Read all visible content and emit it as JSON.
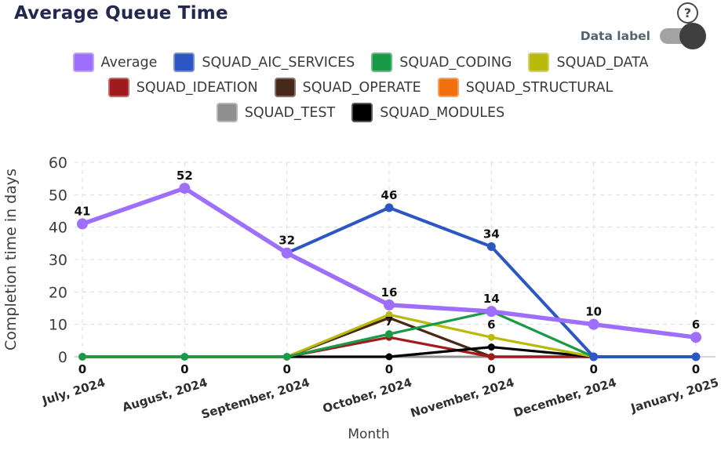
{
  "header": {
    "title": "Average Queue Time",
    "help_icon": "?",
    "toggle": {
      "label": "Data label",
      "state": "on"
    }
  },
  "chart_data": {
    "type": "line",
    "title": "Average Queue Time",
    "xlabel": "Month",
    "ylabel": "Completion time in days",
    "ylim": [
      0,
      60
    ],
    "yticks": [
      0,
      10,
      20,
      30,
      40,
      50,
      60
    ],
    "grid": true,
    "legend_position": "top",
    "categories": [
      "July, 2024",
      "August, 2024",
      "September, 2024",
      "October, 2024",
      "November, 2024",
      "December, 2024",
      "January, 2025"
    ],
    "series": [
      {
        "name": "Average",
        "color": "#9e6efc",
        "line_width": 5.5,
        "point_radius": 7,
        "values": [
          41,
          52,
          32,
          16,
          14,
          10,
          6
        ],
        "labels": [
          "41",
          "52",
          "32",
          "16",
          "14",
          "10",
          "6"
        ]
      },
      {
        "name": "SQUAD_AIC_SERVICES",
        "color": "#2d56c5",
        "line_width": 4,
        "point_radius": 5.5,
        "values": [
          null,
          null,
          32,
          46,
          34,
          0,
          0
        ],
        "labels": [
          null,
          null,
          null,
          "46",
          "34",
          null,
          null
        ]
      },
      {
        "name": "SQUAD_CODING",
        "color": "#189a46",
        "line_width": 3.2,
        "point_radius": 5,
        "values": [
          0,
          0,
          0,
          7,
          14,
          0,
          0
        ],
        "labels": [
          null,
          null,
          null,
          "7",
          null,
          null,
          null
        ]
      },
      {
        "name": "SQUAD_DATA",
        "color": "#b9ba0c",
        "line_width": 3.2,
        "point_radius": 4.5,
        "values": [
          0,
          0,
          0,
          13,
          6,
          0,
          0
        ],
        "labels": [
          null,
          null,
          null,
          null,
          "6",
          null,
          null
        ]
      },
      {
        "name": "SQUAD_IDEATION",
        "color": "#a01b1d",
        "line_width": 3.2,
        "point_radius": 4.5,
        "values": [
          0,
          0,
          0,
          6,
          0,
          0,
          0
        ],
        "labels": []
      },
      {
        "name": "SQUAD_OPERATE",
        "color": "#47291a",
        "line_width": 3.2,
        "point_radius": 4.5,
        "values": [
          0,
          0,
          0,
          12,
          0,
          0,
          0
        ],
        "labels": []
      },
      {
        "name": "SQUAD_STRUCTURAL",
        "color": "#f2700d",
        "line_width": 3.2,
        "point_radius": 4.5,
        "values": [
          0,
          0,
          0,
          12,
          0,
          0,
          0
        ],
        "labels": []
      },
      {
        "name": "SQUAD_TEST",
        "color": "#8f8f8f",
        "line_width": 3,
        "point_radius": 4,
        "values": [
          0,
          0,
          0,
          0,
          0,
          0,
          0
        ],
        "labels": []
      },
      {
        "name": "SQUAD_MODULES",
        "color": "#000000",
        "line_width": 3.2,
        "point_radius": 4.5,
        "values": [
          0,
          0,
          0,
          0,
          3,
          0,
          0
        ],
        "labels": []
      }
    ],
    "zero_labels": [
      "0",
      "0",
      "0",
      "0",
      "0",
      "0",
      "0"
    ],
    "legend_rows": [
      [
        0,
        1,
        2,
        3
      ],
      [
        4,
        5,
        6
      ],
      [
        7,
        8
      ]
    ],
    "z_order": [
      7,
      6,
      5,
      4,
      8,
      3,
      2,
      1,
      0
    ]
  }
}
